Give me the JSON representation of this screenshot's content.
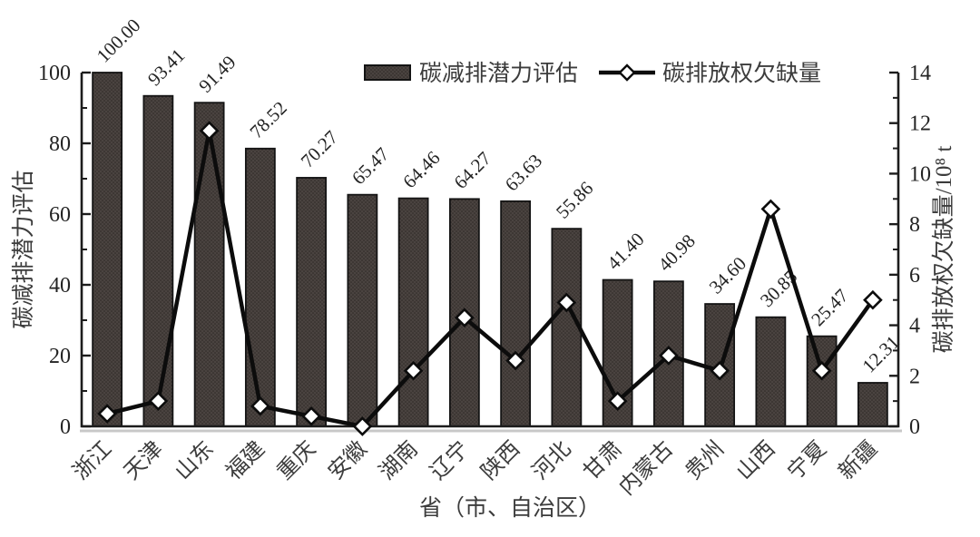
{
  "chart_data": {
    "type": "bar",
    "subtype": "dual-axis bar + line",
    "categories": [
      "浙江",
      "天津",
      "山东",
      "福建",
      "重庆",
      "安徽",
      "湖南",
      "辽宁",
      "陕西",
      "河北",
      "甘肃",
      "内蒙古",
      "贵州",
      "山西",
      "宁夏",
      "新疆"
    ],
    "series": [
      {
        "name": "碳减排潜力评估",
        "type": "bar",
        "axis": "left",
        "values": [
          100.0,
          93.41,
          91.49,
          78.52,
          70.27,
          65.47,
          64.46,
          64.27,
          63.63,
          55.86,
          41.4,
          40.98,
          34.6,
          30.85,
          25.47,
          12.31
        ],
        "labels": [
          "100.00",
          "93.41",
          "91.49",
          "78.52",
          "70.27",
          "65.47",
          "64.46",
          "64.27",
          "63.63",
          "55.86",
          "41.40",
          "40.98",
          "34.60",
          "30.85",
          "25.47",
          "12.31"
        ]
      },
      {
        "name": "碳排放权欠缺量",
        "type": "line",
        "axis": "right",
        "marker": "diamond",
        "values": [
          0.5,
          1.0,
          11.7,
          0.8,
          0.4,
          0.0,
          2.2,
          4.3,
          2.6,
          4.9,
          1.0,
          2.8,
          2.2,
          8.6,
          2.2,
          5.0
        ]
      }
    ],
    "left_axis": {
      "label": "碳减排潜力评估",
      "min": 0,
      "max": 100,
      "ticks": [
        0,
        20,
        40,
        60,
        80,
        100
      ],
      "minor_step": 10
    },
    "right_axis": {
      "label": "碳排放权欠缺量/10⁸ t",
      "min": 0,
      "max": 14,
      "ticks": [
        0,
        2,
        4,
        6,
        8,
        10,
        12,
        14
      ],
      "minor_step": 1
    },
    "xlabel": "省（市、自治区）",
    "legend": {
      "bar": "碳减排潜力评估",
      "line": "碳排放权欠缺量",
      "position": "top-center"
    },
    "grid": false,
    "colors": {
      "bar_fill": "#4a4340",
      "bar_dot": "#2d2825",
      "bar_border": "#141414",
      "line": "#0c0c0c",
      "marker_fill": "#ffffff",
      "axis": "#1c1c1c",
      "number_text": "#232323",
      "cjk_text": "#3c3c3c",
      "shadow": "#c8c8c8"
    }
  }
}
